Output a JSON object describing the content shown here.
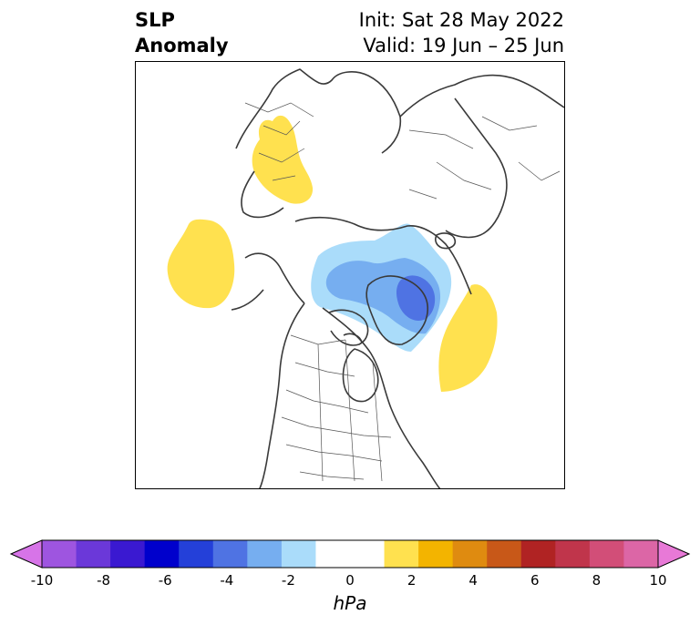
{
  "title": {
    "left_line1": "SLP",
    "left_line2": "Anomaly",
    "right_line1": "Init: Sat 28 May 2022",
    "right_line2": "Valid: 19 Jun – 25 Jun"
  },
  "colorbar": {
    "units": "hPa",
    "ticks": [
      "-10",
      "-8",
      "-6",
      "-4",
      "-2",
      "0",
      "2",
      "4",
      "6",
      "8",
      "10"
    ],
    "range": [
      -10,
      10
    ],
    "extend": "both",
    "colors": [
      "#d774e8",
      "#9e55e0",
      "#6b38d9",
      "#3a19d1",
      "#0000cc",
      "#2440d9",
      "#4f73e3",
      "#76aef0",
      "#aadcfa",
      "#ffffff",
      "#ffffff",
      "#ffe14f",
      "#f3b400",
      "#df8b10",
      "#c85818",
      "#b02323",
      "#c0354b",
      "#d24e78",
      "#dc66a6",
      "#e879d7"
    ]
  },
  "map": {
    "projection": "north-polar-stereographic",
    "features": [
      {
        "name": "positive-anomaly-europe",
        "level": "+1 to +2 hPa",
        "color": "#ffe14f"
      },
      {
        "name": "positive-anomaly-north-pacific",
        "level": "+1 to +2 hPa",
        "color": "#ffe14f"
      },
      {
        "name": "positive-anomaly-north-atlantic",
        "level": "+1 to +2 hPa",
        "color": "#ffe14f"
      },
      {
        "name": "negative-anomaly-arctic",
        "level": "-1 to -2 hPa",
        "color": "#aadcfa"
      },
      {
        "name": "negative-anomaly-arctic-inner",
        "level": "-2 to -3 hPa",
        "color": "#76aef0"
      },
      {
        "name": "negative-anomaly-greenland-core",
        "level": "-3 to -4 hPa",
        "color": "#4f73e3"
      }
    ]
  }
}
